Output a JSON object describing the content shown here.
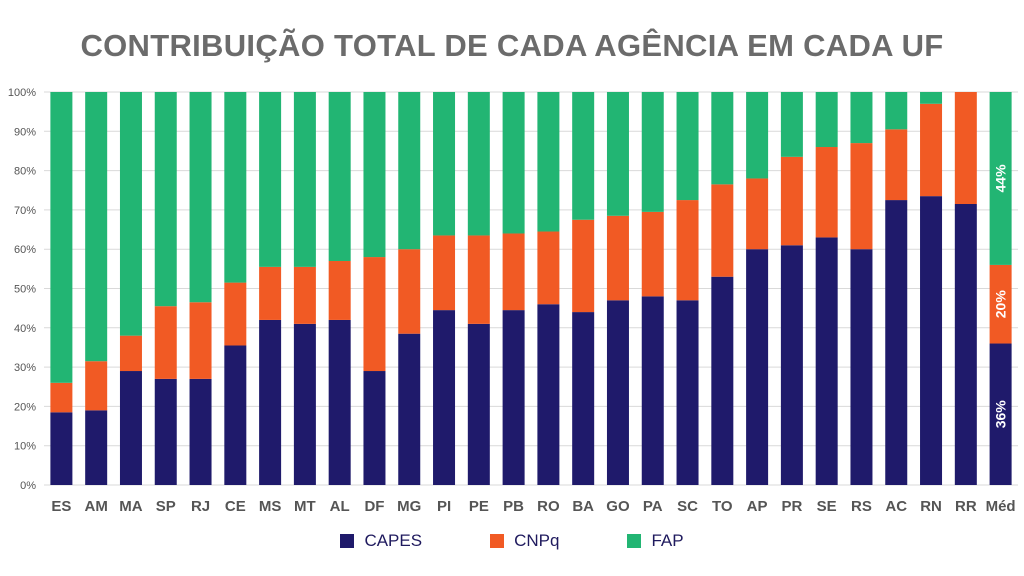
{
  "chart_data": {
    "type": "bar",
    "stacked": true,
    "title": "CONTRIBUIÇÃO TOTAL DE CADA AGÊNCIA EM CADA UF",
    "categories": [
      "ES",
      "AM",
      "MA",
      "SP",
      "RJ",
      "CE",
      "MS",
      "MT",
      "AL",
      "DF",
      "MG",
      "PI",
      "PE",
      "PB",
      "RO",
      "BA",
      "GO",
      "PA",
      "SC",
      "TO",
      "AP",
      "PR",
      "SE",
      "RS",
      "AC",
      "RN",
      "RR",
      "Méd"
    ],
    "series": [
      {
        "name": "CAPES",
        "color": "#1f1a6b",
        "values": [
          18.5,
          19,
          29,
          27,
          27,
          35.5,
          42,
          41,
          42,
          29,
          38.5,
          44.5,
          41,
          44.5,
          46,
          44,
          47,
          48,
          47,
          53,
          60,
          61,
          63,
          60,
          72.5,
          73.5,
          71.5,
          36
        ]
      },
      {
        "name": "CNPq",
        "color": "#f15a24",
        "values": [
          7.5,
          12.5,
          9,
          18.5,
          19.5,
          16,
          13.5,
          14.5,
          15,
          29,
          21.5,
          19,
          22.5,
          19.5,
          18.5,
          23.5,
          21.5,
          21.5,
          25.5,
          23.5,
          18,
          22.5,
          23,
          27,
          18,
          23.5,
          28.5,
          20
        ]
      },
      {
        "name": "FAP",
        "color": "#22b573",
        "values": [
          74,
          68.5,
          62,
          54.5,
          53.5,
          48.5,
          44.5,
          44.5,
          43,
          42,
          40,
          36.5,
          36.5,
          36,
          35.5,
          32.5,
          31.5,
          30.5,
          27.5,
          23.5,
          22,
          16.5,
          14,
          13,
          9.5,
          3,
          0,
          44
        ]
      }
    ],
    "ylim": [
      0,
      100
    ],
    "yticks": [
      "0%",
      "10%",
      "20%",
      "30%",
      "40%",
      "50%",
      "60%",
      "70%",
      "80%",
      "90%",
      "100%"
    ],
    "data_labels": {
      "category": "Méd",
      "CAPES": "36%",
      "CNPq": "20%",
      "FAP": "44%"
    },
    "legend": [
      "CAPES",
      "CNPq",
      "FAP"
    ],
    "legend_position": "bottom"
  }
}
